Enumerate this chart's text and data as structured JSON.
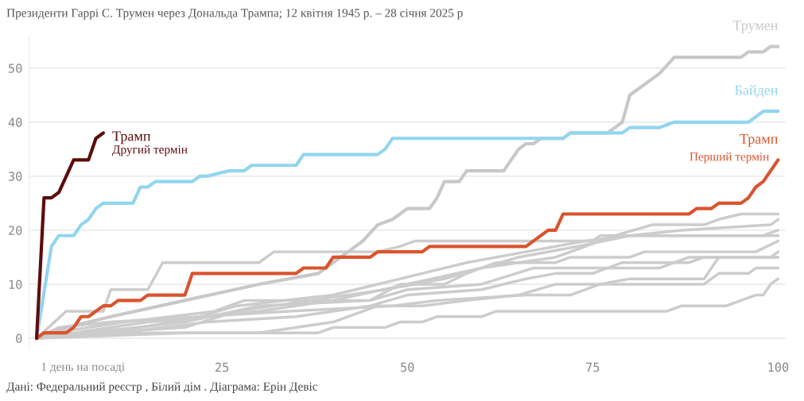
{
  "chart_data": {
    "type": "line",
    "title": "Президенти Гаррі С. Трумен через Дональда Трампа; 12 квітня 1945 р. – 28 січня 2025 р",
    "annotations": [
      "Дані: Федеральний реєстр , Білий дім . Діаграма: Ерін Девіс",
      {
        "text": "Перший термін",
        "x": 100,
        "y": 33
      },
      {
        "text": "Другий термін",
        "x": 9,
        "y": 38
      }
    ],
    "xlim": [
      -1,
      101
    ],
    "xticks": [
      {
        "value": 1,
        "label": "1 день на посаді"
      },
      25,
      50,
      75,
      100
    ],
    "ylim": [
      -2,
      56
    ],
    "yticks": [
      0,
      10,
      20,
      30,
      40,
      50
    ],
    "grid": "y",
    "marker": "none",
    "line_style": "solid",
    "series": [
      {
        "color": "#cccccc",
        "x": [
          0,
          5,
          15,
          30,
          40,
          50,
          60,
          70,
          78,
          83,
          90,
          92,
          95,
          100
        ],
        "values": [
          0,
          1,
          3,
          5,
          7,
          10,
          13,
          15,
          19,
          21,
          21,
          22,
          23,
          23
        ]
      },
      {
        "color": "#cccccc",
        "x": [
          0,
          8,
          20,
          27,
          37,
          47,
          55,
          65,
          73,
          80,
          87,
          99,
          100
        ],
        "values": [
          0,
          1,
          2,
          5,
          7,
          9,
          11,
          15,
          17,
          19,
          20,
          21,
          22
        ]
      },
      {
        "color": "#cccccc",
        "x": [
          0,
          3,
          10,
          22,
          27,
          40,
          46,
          52,
          58,
          66,
          74,
          80,
          98,
          100
        ],
        "values": [
          0,
          2,
          3,
          4,
          6,
          8,
          10,
          12,
          14,
          16,
          18,
          19,
          19,
          20
        ]
      },
      {
        "color": "#cccccc",
        "x": [
          0,
          4,
          9,
          10,
          15,
          17,
          30,
          32,
          46,
          49,
          51,
          62,
          75,
          76,
          100
        ],
        "values": [
          0,
          5,
          5,
          9,
          9,
          14,
          14,
          16,
          16,
          17,
          18,
          18,
          18,
          19,
          19
        ]
      },
      {
        "color": "#cccccc",
        "x": [
          0,
          7,
          20,
          30,
          45,
          49,
          55,
          58,
          62,
          70,
          72,
          80,
          82,
          97,
          100
        ],
        "values": [
          0,
          1,
          3,
          6,
          7,
          10,
          10,
          12,
          14,
          14,
          15,
          15,
          16,
          16,
          18
        ]
      },
      {
        "color": "#cccccc",
        "x": [
          0,
          11,
          23,
          35,
          45,
          50,
          60,
          66,
          70,
          75,
          79,
          88,
          90,
          99,
          100
        ],
        "values": [
          0,
          1,
          3,
          4,
          6,
          8,
          9,
          11,
          12,
          12,
          14,
          14,
          15,
          15,
          16
        ]
      },
      {
        "color": "#cccccc",
        "x": [
          0,
          2,
          12,
          24,
          28,
          45,
          50,
          60,
          67,
          84,
          86,
          88,
          100
        ],
        "values": [
          0,
          1,
          3,
          5,
          7,
          7,
          9,
          10,
          13,
          13,
          14,
          15,
          15
        ]
      },
      {
        "color": "#cccccc",
        "x": [
          0,
          6,
          14,
          22,
          34,
          48,
          54,
          66,
          72,
          76,
          80,
          90,
          92,
          100
        ],
        "values": [
          0,
          1,
          2,
          4,
          5,
          6,
          7,
          8,
          8,
          10,
          11,
          11,
          15,
          15
        ]
      },
      {
        "color": "#cccccc",
        "x": [
          0,
          10,
          30,
          40,
          46,
          52,
          58,
          65,
          70,
          82,
          90,
          92,
          96,
          97,
          100
        ],
        "values": [
          0,
          1,
          1,
          3,
          6,
          6,
          7,
          8,
          10,
          10,
          10,
          12,
          12,
          13,
          13
        ]
      },
      {
        "color": "#cccccc",
        "x": [
          0,
          20,
          38,
          40,
          47,
          49,
          52,
          54,
          60,
          62,
          85,
          87,
          93,
          95,
          97,
          98,
          99,
          100
        ],
        "values": [
          0,
          1,
          1,
          2,
          2,
          3,
          3,
          4,
          4,
          5,
          5,
          6,
          6,
          7,
          8,
          8,
          10,
          11
        ]
      },
      {
        "name": "Трумен",
        "color": "#c8c8c8",
        "x": [
          0,
          4,
          10,
          20,
          30,
          38,
          42,
          44,
          46,
          48,
          50,
          53,
          54,
          55,
          57,
          58,
          63,
          65,
          66,
          67,
          68,
          71,
          72,
          77,
          79,
          80,
          84,
          86,
          95,
          96,
          98,
          99,
          100
        ],
        "values": [
          0,
          2,
          4,
          7,
          10,
          12,
          16,
          18,
          21,
          22,
          24,
          24,
          26,
          29,
          29,
          31,
          31,
          35,
          36,
          36,
          37,
          37,
          38,
          38,
          40,
          45,
          49,
          52,
          52,
          53,
          53,
          54,
          54
        ]
      },
      {
        "name": "Байден",
        "color": "#92d5ef",
        "x": [
          0,
          2,
          3,
          5,
          6,
          7,
          8,
          9,
          13,
          14,
          15,
          16,
          21,
          22,
          23,
          26,
          28,
          29,
          35,
          36,
          46,
          47,
          48,
          71,
          72,
          79,
          80,
          84,
          86,
          96,
          98,
          100
        ],
        "values": [
          0,
          17,
          19,
          19,
          21,
          22,
          24,
          25,
          25,
          28,
          28,
          29,
          29,
          30,
          30,
          31,
          31,
          32,
          32,
          34,
          34,
          35,
          37,
          37,
          38,
          38,
          39,
          39,
          40,
          40,
          42,
          42
        ]
      },
      {
        "name": "Трамп",
        "color": "#d9542e",
        "x": [
          0,
          1,
          4,
          5,
          6,
          7,
          9,
          10,
          11,
          14,
          15,
          20,
          21,
          35,
          36,
          39,
          40,
          45,
          46,
          52,
          53,
          66,
          69,
          70,
          71,
          88,
          89,
          91,
          92,
          95,
          96,
          97,
          98,
          100
        ],
        "values": [
          0,
          1,
          1,
          2,
          4,
          4,
          6,
          6,
          7,
          7,
          8,
          8,
          12,
          12,
          13,
          13,
          15,
          15,
          16,
          16,
          17,
          17,
          20,
          20,
          23,
          23,
          24,
          24,
          25,
          25,
          26,
          28,
          29,
          33
        ]
      },
      {
        "name": "Трамп",
        "color": "#5c0c0c",
        "x": [
          0,
          1,
          2,
          3,
          5,
          7,
          8,
          9
        ],
        "values": [
          0,
          26,
          26,
          27,
          33,
          33,
          37,
          38
        ]
      }
    ]
  }
}
